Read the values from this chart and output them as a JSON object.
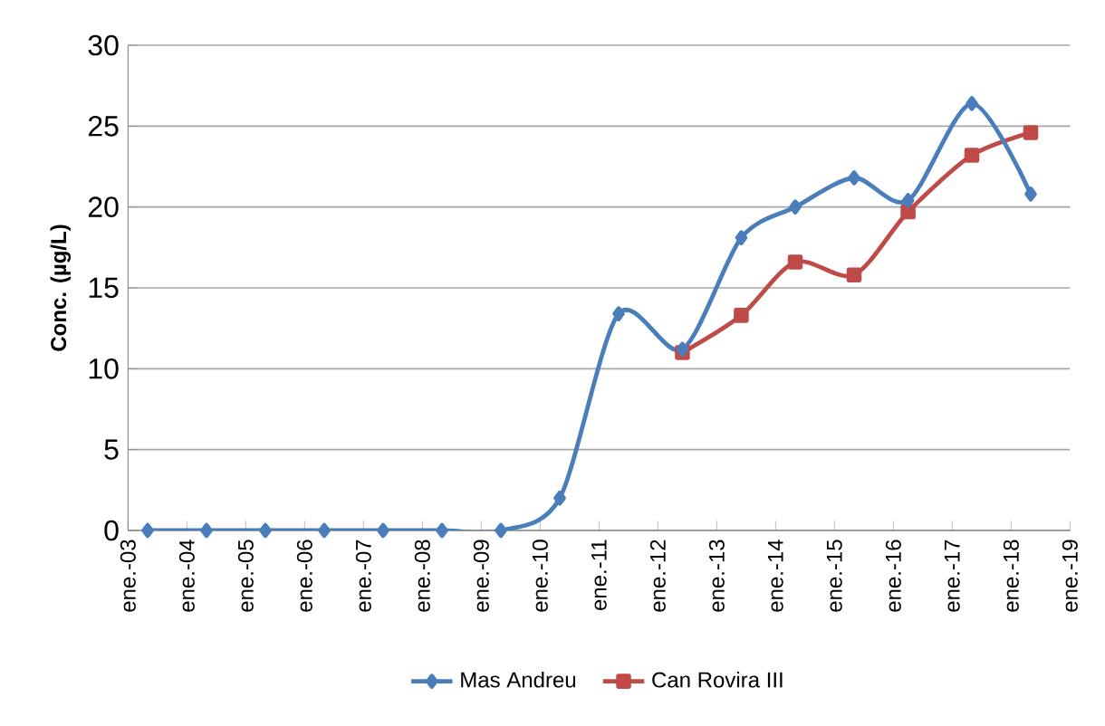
{
  "chart_data": {
    "type": "line",
    "ylabel": "Conc. (µg/L)",
    "x": [
      "2003-05",
      "2004-05",
      "2005-05",
      "2006-05",
      "2007-05",
      "2008-05",
      "2009-05",
      "2010-05",
      "2011-05",
      "2012-06",
      "2013-06",
      "2014-05",
      "2015-05",
      "2016-04",
      "2017-05",
      "2018-05"
    ],
    "series": [
      {
        "name": "Mas Andreu",
        "color": "#4a7ebb",
        "marker": "diamond",
        "values": [
          0,
          0,
          0,
          0,
          0,
          0,
          0,
          2.0,
          13.4,
          11.2,
          18.1,
          20.0,
          21.8,
          20.4,
          26.4,
          20.8
        ]
      },
      {
        "name": "Can Rovira III",
        "color": "#be4b48",
        "marker": "square",
        "x": [
          "2012-06",
          "2013-06",
          "2014-05",
          "2015-05",
          "2016-04",
          "2017-05",
          "2018-05"
        ],
        "values": [
          11.0,
          13.3,
          16.6,
          15.8,
          19.7,
          23.2,
          24.6
        ]
      }
    ],
    "xlim": [
      "2003-01",
      "2019-01"
    ],
    "xticks": [
      {
        "value": "2003-01",
        "label": "ene.-03"
      },
      {
        "value": "2004-01",
        "label": "ene.-04"
      },
      {
        "value": "2005-01",
        "label": "ene.-05"
      },
      {
        "value": "2006-01",
        "label": "ene.-06"
      },
      {
        "value": "2007-01",
        "label": "ene.-07"
      },
      {
        "value": "2008-01",
        "label": "ene.-08"
      },
      {
        "value": "2009-01",
        "label": "ene.-09"
      },
      {
        "value": "2010-01",
        "label": "ene.-10"
      },
      {
        "value": "2011-01",
        "label": "ene.-11"
      },
      {
        "value": "2012-01",
        "label": "ene.-12"
      },
      {
        "value": "2013-01",
        "label": "ene.-13"
      },
      {
        "value": "2014-01",
        "label": "ene.-14"
      },
      {
        "value": "2015-01",
        "label": "ene.-15"
      },
      {
        "value": "2016-01",
        "label": "ene.-16"
      },
      {
        "value": "2017-01",
        "label": "ene.-17"
      },
      {
        "value": "2018-01",
        "label": "ene.-18"
      },
      {
        "value": "2019-01",
        "label": "ene.-19"
      }
    ],
    "ylim": [
      0,
      30
    ],
    "yticks": [
      0,
      5,
      10,
      15,
      20,
      25,
      30
    ],
    "grid": "y",
    "legend": "bottom",
    "line_style": "solid"
  }
}
